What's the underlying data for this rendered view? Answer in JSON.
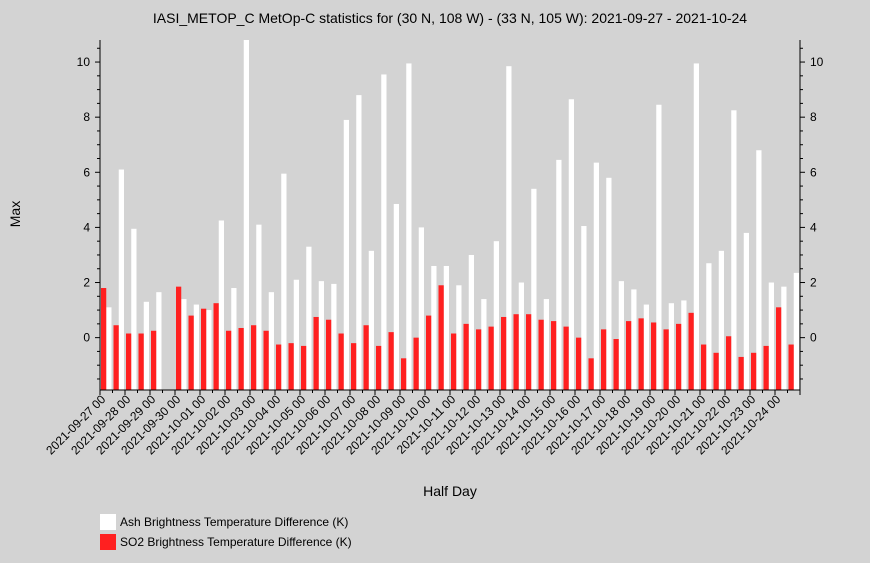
{
  "chart_data": {
    "type": "bar",
    "title": "IASI_METOP_C MetOp-C statistics for (30 N, 108 W) - (33 N, 105 W): 2021-09-27 - 2021-10-24",
    "xlabel": "Half Day",
    "ylabel": "Max",
    "ylim": [
      -1.9,
      10.8
    ],
    "yticks": [
      0,
      2,
      4,
      6,
      8,
      10
    ],
    "x_tick_labels": [
      "2021-09-27 00",
      "2021-09-28 00",
      "2021-09-29 00",
      "2021-09-30 00",
      "2021-10-01 00",
      "2021-10-02 00",
      "2021-10-03 00",
      "2021-10-04 00",
      "2021-10-05 00",
      "2021-10-06 00",
      "2021-10-07 00",
      "2021-10-08 00",
      "2021-10-09 00",
      "2021-10-10 00",
      "2021-10-11 00",
      "2021-10-12 00",
      "2021-10-13 00",
      "2021-10-14 00",
      "2021-10-15 00",
      "2021-10-16 00",
      "2021-10-17 00",
      "2021-10-18 00",
      "2021-10-19 00",
      "2021-10-20 00",
      "2021-10-21 00",
      "2021-10-22 00",
      "2021-10-23 00",
      "2021-10-24 00"
    ],
    "series": [
      {
        "name": "Ash Brightness Temperature Difference (K)",
        "color": "#ffffff",
        "values": [
          1.1,
          6.1,
          3.95,
          1.3,
          1.65,
          null,
          1.4,
          1.2,
          1.0,
          4.25,
          1.8,
          10.8,
          4.1,
          1.65,
          5.95,
          2.1,
          3.3,
          2.05,
          1.95,
          7.9,
          8.8,
          3.15,
          9.55,
          4.85,
          9.95,
          4.0,
          2.6,
          2.6,
          1.9,
          3.0,
          1.4,
          3.5,
          9.85,
          2.0,
          5.4,
          1.4,
          6.45,
          8.65,
          4.05,
          6.35,
          5.8,
          2.05,
          1.75,
          1.2,
          8.45,
          1.25,
          1.35,
          9.95,
          2.7,
          3.15,
          8.25,
          3.8,
          6.8,
          2.0,
          1.85,
          2.35
        ]
      },
      {
        "name": "SO2 Brightness Temperature Difference (K)",
        "color": "#ff2020",
        "values": [
          1.8,
          0.45,
          0.15,
          0.15,
          0.25,
          null,
          1.85,
          0.8,
          1.05,
          1.25,
          0.25,
          0.35,
          0.45,
          0.25,
          -0.25,
          -0.2,
          -0.3,
          0.75,
          0.65,
          0.15,
          -0.2,
          0.45,
          -0.3,
          0.2,
          -0.75,
          0.0,
          0.8,
          1.9,
          0.15,
          0.5,
          0.3,
          0.4,
          0.75,
          0.85,
          0.85,
          0.65,
          0.6,
          0.4,
          0.0,
          -0.75,
          0.3,
          -0.05,
          0.6,
          0.7,
          0.55,
          0.3,
          0.5,
          0.9,
          -0.25,
          -0.55,
          0.05,
          -0.7,
          -0.55,
          -0.3,
          1.1,
          -0.25
        ]
      }
    ],
    "legend_position": "bottom-left",
    "grid": false
  }
}
